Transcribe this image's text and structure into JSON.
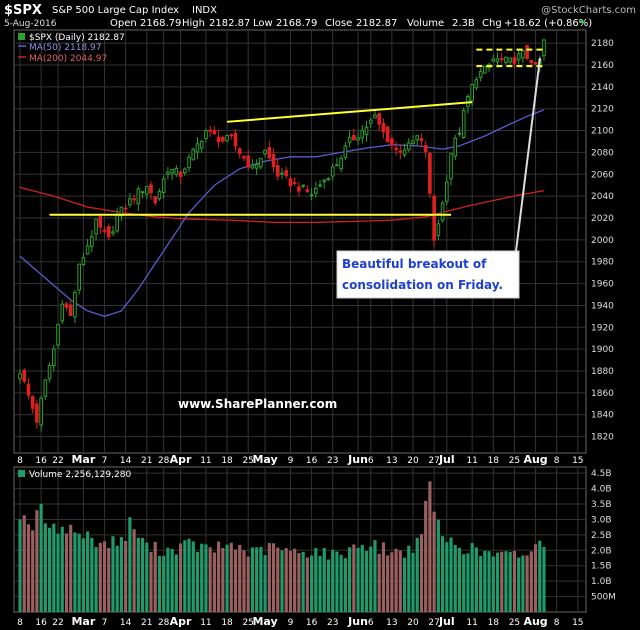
{
  "header": {
    "symbol": "$SPX",
    "name": "S&P 500 Large Cap Index",
    "exchange": "INDX",
    "watermark": "@StockCharts.com",
    "date": "5-Aug-2016",
    "open_label": "Open",
    "open": "2168.79",
    "high_label": "High",
    "high": "2182.87",
    "low_label": "Low",
    "low": "2168.79",
    "close_label": "Close",
    "close": "2182.87",
    "volume_label": "Volume",
    "volume": "2.3B",
    "chg_label": "Chg",
    "chg": "+18.62 (+0.86%)"
  },
  "legend": {
    "price": "$SPX (Daily) 2182.87",
    "ma50": "MA(50) 2118.97",
    "ma200": "MA(200) 2044.97",
    "volume": "Volume 2,256,129,280"
  },
  "annotations": {
    "callout_line1": "Beautiful breakout of",
    "callout_line2": "consolidation on Friday.",
    "site": "www.SharePlanner.com"
  },
  "colors": {
    "up": "#2ca02c",
    "down": "#e02020",
    "ma50": "#5a5ad0",
    "ma200": "#d02020",
    "trendline": "#ffff33",
    "grid": "#333333",
    "vol_up": "#1f9a6a",
    "vol_down": "#9a6060"
  },
  "chart_data": {
    "type": "candlestick",
    "price_ylim": [
      1805,
      2192
    ],
    "price_ticks": [
      "2180",
      "2160",
      "2140",
      "2120",
      "2100",
      "2080",
      "2060",
      "2040",
      "2020",
      "2000",
      "1980",
      "1960",
      "1940",
      "1920",
      "1900",
      "1880",
      "1860",
      "1840",
      "1820"
    ],
    "volume_ylim": [
      0,
      4.7
    ],
    "volume_ticks": [
      "4.5B",
      "4.0B",
      "3.5B",
      "3.0B",
      "2.5B",
      "2.0B",
      "1.5B",
      "1.0B",
      "500M"
    ],
    "x_ticks": [
      {
        "label": "8",
        "i": 0,
        "bold": false
      },
      {
        "label": "16",
        "i": 5,
        "bold": false
      },
      {
        "label": "22",
        "i": 9,
        "bold": false
      },
      {
        "label": "Mar",
        "i": 15,
        "bold": true
      },
      {
        "label": "7",
        "i": 20,
        "bold": false
      },
      {
        "label": "14",
        "i": 25,
        "bold": false
      },
      {
        "label": "21",
        "i": 30,
        "bold": false
      },
      {
        "label": "28",
        "i": 34,
        "bold": false
      },
      {
        "label": "Apr",
        "i": 38,
        "bold": true
      },
      {
        "label": "11",
        "i": 44,
        "bold": false
      },
      {
        "label": "18",
        "i": 49,
        "bold": false
      },
      {
        "label": "25",
        "i": 54,
        "bold": false
      },
      {
        "label": "May",
        "i": 58,
        "bold": true
      },
      {
        "label": "9",
        "i": 64,
        "bold": false
      },
      {
        "label": "16",
        "i": 69,
        "bold": false
      },
      {
        "label": "23",
        "i": 74,
        "bold": false
      },
      {
        "label": "Jun",
        "i": 80,
        "bold": true
      },
      {
        "label": "6",
        "i": 83,
        "bold": false
      },
      {
        "label": "13",
        "i": 88,
        "bold": false
      },
      {
        "label": "20",
        "i": 93,
        "bold": false
      },
      {
        "label": "27",
        "i": 98,
        "bold": false
      },
      {
        "label": "Jul",
        "i": 101,
        "bold": true
      },
      {
        "label": "11",
        "i": 107,
        "bold": false
      },
      {
        "label": "18",
        "i": 112,
        "bold": false
      },
      {
        "label": "25",
        "i": 117,
        "bold": false
      },
      {
        "label": "Aug",
        "i": 122,
        "bold": true
      },
      {
        "label": "8",
        "i": 127,
        "bold": false
      },
      {
        "label": "15",
        "i": 132,
        "bold": false
      }
    ],
    "price_waypoints": [
      [
        0,
        1880
      ],
      [
        4,
        1835
      ],
      [
        6,
        1870
      ],
      [
        8,
        1900
      ],
      [
        10,
        1945
      ],
      [
        12,
        1930
      ],
      [
        14,
        1975
      ],
      [
        18,
        2015
      ],
      [
        21,
        2000
      ],
      [
        23,
        2022
      ],
      [
        27,
        2040
      ],
      [
        30,
        2050
      ],
      [
        32,
        2035
      ],
      [
        35,
        2065
      ],
      [
        38,
        2060
      ],
      [
        41,
        2080
      ],
      [
        44,
        2100
      ],
      [
        46,
        2095
      ],
      [
        48,
        2091
      ],
      [
        50,
        2092
      ],
      [
        52,
        2080
      ],
      [
        55,
        2065
      ],
      [
        58,
        2081
      ],
      [
        61,
        2060
      ],
      [
        65,
        2050
      ],
      [
        69,
        2042
      ],
      [
        72,
        2055
      ],
      [
        75,
        2070
      ],
      [
        78,
        2090
      ],
      [
        81,
        2100
      ],
      [
        84,
        2112
      ],
      [
        86,
        2098
      ],
      [
        89,
        2082
      ],
      [
        92,
        2085
      ],
      [
        94,
        2094
      ],
      [
        96,
        2082
      ],
      [
        97,
        2040
      ],
      [
        98,
        2000
      ],
      [
        100,
        2033
      ],
      [
        102,
        2080
      ],
      [
        104,
        2100
      ],
      [
        106,
        2130
      ],
      [
        108,
        2150
      ],
      [
        110,
        2155
      ],
      [
        112,
        2165
      ],
      [
        116,
        2163
      ],
      [
        119,
        2170
      ],
      [
        121,
        2165
      ],
      [
        122,
        2157
      ],
      [
        123,
        2164
      ],
      [
        124,
        2182
      ]
    ],
    "ma50_waypoints": [
      [
        0,
        1985
      ],
      [
        6,
        1965
      ],
      [
        12,
        1945
      ],
      [
        16,
        1935
      ],
      [
        20,
        1930
      ],
      [
        24,
        1935
      ],
      [
        28,
        1955
      ],
      [
        34,
        1990
      ],
      [
        40,
        2025
      ],
      [
        46,
        2050
      ],
      [
        52,
        2065
      ],
      [
        58,
        2072
      ],
      [
        64,
        2076
      ],
      [
        70,
        2076
      ],
      [
        76,
        2080
      ],
      [
        82,
        2084
      ],
      [
        88,
        2087
      ],
      [
        94,
        2086
      ],
      [
        100,
        2083
      ],
      [
        104,
        2086
      ],
      [
        110,
        2095
      ],
      [
        116,
        2106
      ],
      [
        120,
        2113
      ],
      [
        124,
        2119
      ]
    ],
    "ma200_waypoints": [
      [
        0,
        2048
      ],
      [
        8,
        2040
      ],
      [
        16,
        2030
      ],
      [
        24,
        2025
      ],
      [
        32,
        2021
      ],
      [
        40,
        2019
      ],
      [
        50,
        2018
      ],
      [
        60,
        2016
      ],
      [
        70,
        2016
      ],
      [
        80,
        2017
      ],
      [
        88,
        2018
      ],
      [
        96,
        2021
      ],
      [
        100,
        2025
      ],
      [
        106,
        2031
      ],
      [
        112,
        2036
      ],
      [
        118,
        2041
      ],
      [
        124,
        2045
      ]
    ],
    "volume_waypoints": [
      [
        0,
        3.2
      ],
      [
        3,
        2.8
      ],
      [
        5,
        3.4
      ],
      [
        7,
        2.6
      ],
      [
        10,
        2.8
      ],
      [
        15,
        2.5
      ],
      [
        20,
        2.2
      ],
      [
        25,
        2.4
      ],
      [
        26,
        2.9
      ],
      [
        30,
        2.1
      ],
      [
        35,
        2.0
      ],
      [
        40,
        2.2
      ],
      [
        45,
        2.0
      ],
      [
        50,
        2.2
      ],
      [
        55,
        1.9
      ],
      [
        60,
        2.1
      ],
      [
        65,
        1.9
      ],
      [
        70,
        2.0
      ],
      [
        75,
        1.8
      ],
      [
        80,
        2.2
      ],
      [
        85,
        2.1
      ],
      [
        90,
        1.9
      ],
      [
        95,
        2.3
      ],
      [
        96,
        3.5
      ],
      [
        97,
        4.4
      ],
      [
        98,
        3.2
      ],
      [
        100,
        2.4
      ],
      [
        105,
        2.1
      ],
      [
        110,
        1.9
      ],
      [
        115,
        1.8
      ],
      [
        120,
        1.9
      ],
      [
        124,
        2.3
      ]
    ],
    "trendlines": [
      {
        "i1": 49,
        "p1": 2108,
        "i2": 107,
        "p2": 2126
      },
      {
        "i1": 7,
        "p1": 2023,
        "i2": 102,
        "p2": 2023
      },
      {
        "i1": 108,
        "p1": 2174,
        "i2": 124,
        "p2": 2174,
        "dashed": true
      },
      {
        "i1": 108,
        "p1": 2159,
        "i2": 124,
        "p2": 2159,
        "dashed": true
      }
    ]
  }
}
